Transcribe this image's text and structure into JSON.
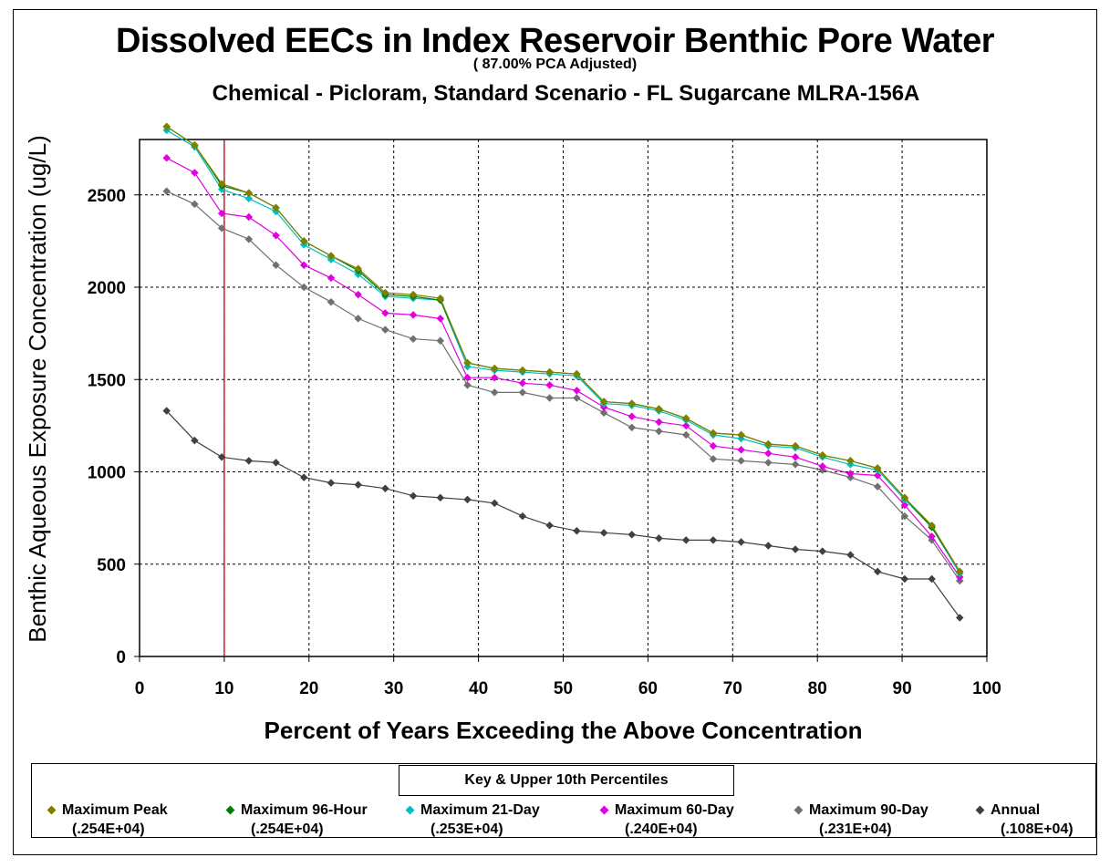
{
  "chart_data": {
    "type": "line",
    "title": "Dissolved EECs in Index Reservoir Benthic Pore Water",
    "subtitle": "( 87.00% PCA Adjusted)",
    "subtitle2": "Chemical - Picloram,  Standard Scenario - FL Sugarcane    MLRA-156A",
    "xlabel": "Percent of Years Exceeding the Above Concentration",
    "ylabel": "Benthic Aqueous Exposure Concentration (ug/L)",
    "xlim": [
      0,
      100
    ],
    "ylim": [
      0,
      2800
    ],
    "xticks": [
      "0",
      "10",
      "20",
      "30",
      "40",
      "50",
      "60",
      "70",
      "80",
      "90",
      "100"
    ],
    "yticks": [
      "0",
      "500",
      "1000",
      "1500",
      "2000",
      "2500"
    ],
    "grid": true,
    "reference_line_x": 10,
    "x": [
      3.2,
      6.5,
      9.7,
      12.9,
      16.1,
      19.4,
      22.6,
      25.8,
      29.0,
      32.3,
      35.5,
      38.7,
      41.9,
      45.2,
      48.4,
      51.6,
      54.8,
      58.1,
      61.3,
      64.5,
      67.7,
      71.0,
      74.2,
      77.4,
      80.6,
      83.9,
      87.1,
      90.3,
      93.5,
      96.8
    ],
    "series": [
      {
        "name": "Maximum Peak",
        "color": "#808000",
        "values": [
          2870,
          2770,
          2560,
          2510,
          2430,
          2250,
          2170,
          2100,
          1970,
          1960,
          1940,
          1590,
          1560,
          1550,
          1540,
          1530,
          1380,
          1370,
          1340,
          1290,
          1210,
          1200,
          1150,
          1140,
          1090,
          1060,
          1020,
          860,
          710,
          460
        ]
      },
      {
        "name": "Maximum 96-Hour",
        "color": "#008000",
        "values": [
          2870,
          2770,
          2550,
          2510,
          2430,
          2250,
          2170,
          2090,
          1960,
          1950,
          1930,
          1590,
          1560,
          1550,
          1540,
          1530,
          1380,
          1370,
          1340,
          1290,
          1210,
          1200,
          1150,
          1140,
          1090,
          1060,
          1020,
          860,
          700,
          460
        ]
      },
      {
        "name": "Maximum 21-Day",
        "color": "#00BFBF",
        "values": [
          2850,
          2760,
          2530,
          2480,
          2410,
          2230,
          2150,
          2070,
          1950,
          1940,
          1930,
          1570,
          1550,
          1540,
          1530,
          1520,
          1370,
          1360,
          1330,
          1280,
          1200,
          1180,
          1140,
          1130,
          1080,
          1040,
          1010,
          850,
          700,
          450
        ]
      },
      {
        "name": "Maximum 60-Day",
        "color": "#E000E0",
        "values": [
          2700,
          2620,
          2400,
          2380,
          2280,
          2120,
          2050,
          1960,
          1860,
          1850,
          1830,
          1510,
          1510,
          1480,
          1470,
          1440,
          1350,
          1300,
          1270,
          1250,
          1140,
          1120,
          1100,
          1080,
          1030,
          990,
          980,
          820,
          650,
          430
        ]
      },
      {
        "name": "Maximum 90-Day",
        "color": "#707070",
        "values": [
          2520,
          2450,
          2320,
          2260,
          2120,
          2000,
          1920,
          1830,
          1770,
          1720,
          1710,
          1470,
          1430,
          1430,
          1400,
          1400,
          1320,
          1240,
          1220,
          1200,
          1070,
          1060,
          1050,
          1040,
          1010,
          970,
          920,
          760,
          630,
          410
        ]
      },
      {
        "name": "Annual",
        "color": "#404040",
        "values": [
          1330,
          1170,
          1080,
          1060,
          1050,
          970,
          940,
          930,
          910,
          870,
          860,
          850,
          830,
          760,
          710,
          680,
          670,
          660,
          640,
          630,
          630,
          620,
          600,
          580,
          570,
          550,
          460,
          420,
          420,
          210
        ]
      }
    ]
  },
  "legend": {
    "title": "Key & Upper 10th Percentiles",
    "items": [
      {
        "name": "Maximum Peak",
        "value": "(.254E+04)",
        "color": "#808000"
      },
      {
        "name": "Maximum 96-Hour",
        "value": "(.254E+04)",
        "color": "#008000"
      },
      {
        "name": "Maximum 21-Day",
        "value": "(.253E+04)",
        "color": "#00BFBF"
      },
      {
        "name": "Maximum 60-Day",
        "value": "(.240E+04)",
        "color": "#E000E0"
      },
      {
        "name": "Maximum 90-Day",
        "value": "(.231E+04)",
        "color": "#707070"
      },
      {
        "name": "Annual",
        "value": "(.108E+04)",
        "color": "#404040"
      }
    ]
  }
}
